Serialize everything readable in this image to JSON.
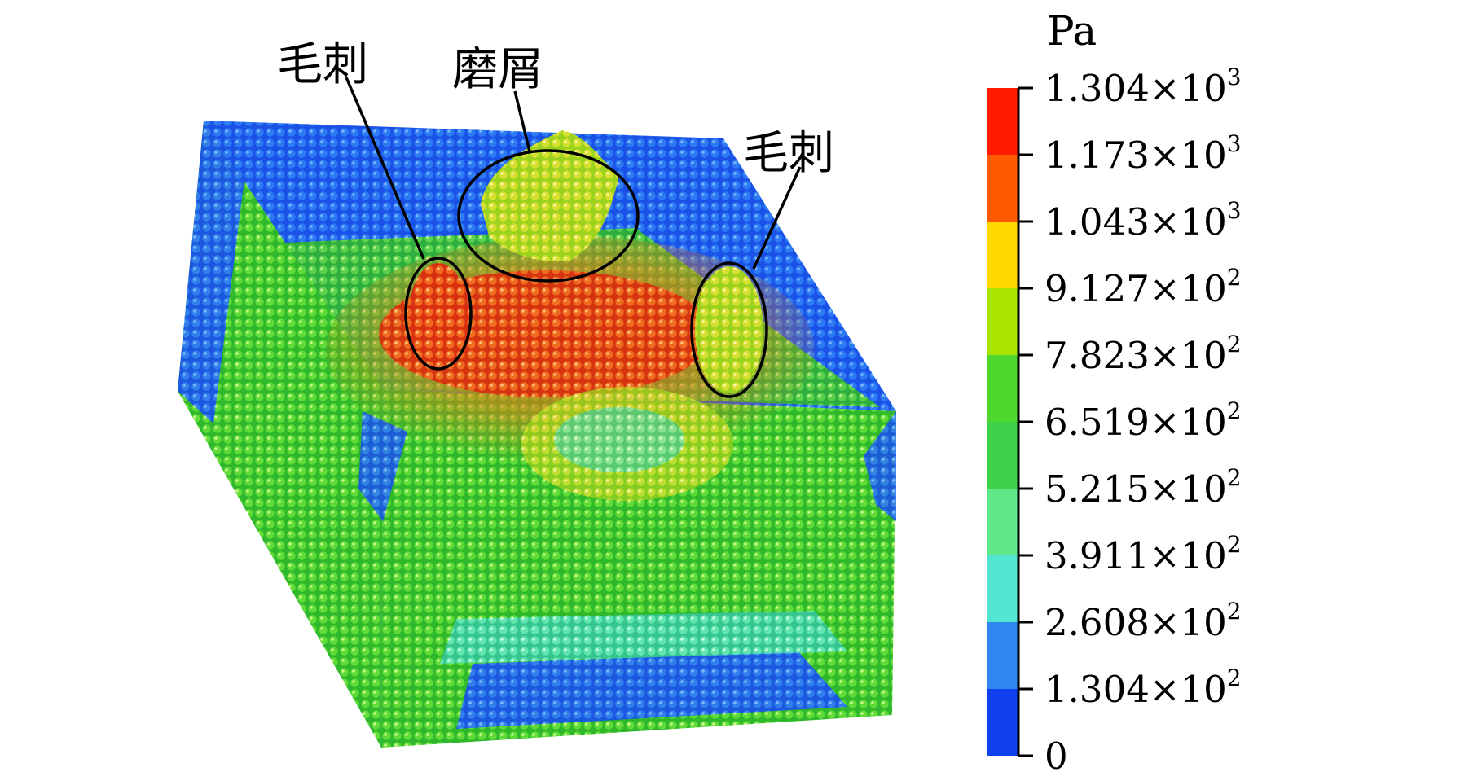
{
  "annotations": {
    "burr_left": "毛刺",
    "debris": "磨屑",
    "burr_right": "毛刺"
  },
  "colorbar": {
    "unit": "Pa",
    "levels": [
      {
        "mantissa": "1.304",
        "exponent": "3",
        "color": "#ff1a00"
      },
      {
        "mantissa": "1.173",
        "exponent": "3",
        "color": "#ff5a00"
      },
      {
        "mantissa": "1.043",
        "exponent": "3",
        "color": "#ffd800"
      },
      {
        "mantissa": "9.127",
        "exponent": "2",
        "color": "#a8e400"
      },
      {
        "mantissa": "7.823",
        "exponent": "2",
        "color": "#4ed82e"
      },
      {
        "mantissa": "6.519",
        "exponent": "2",
        "color": "#3fd04a"
      },
      {
        "mantissa": "5.215",
        "exponent": "2",
        "color": "#5ee88a"
      },
      {
        "mantissa": "3.911",
        "exponent": "2",
        "color": "#52e6d2"
      },
      {
        "mantissa": "2.608",
        "exponent": "2",
        "color": "#2f86f0"
      },
      {
        "mantissa": "1.304",
        "exponent": "2",
        "color": "#1040ee"
      }
    ],
    "zero_label": "0",
    "times_symbol": "×",
    "base": "10"
  }
}
